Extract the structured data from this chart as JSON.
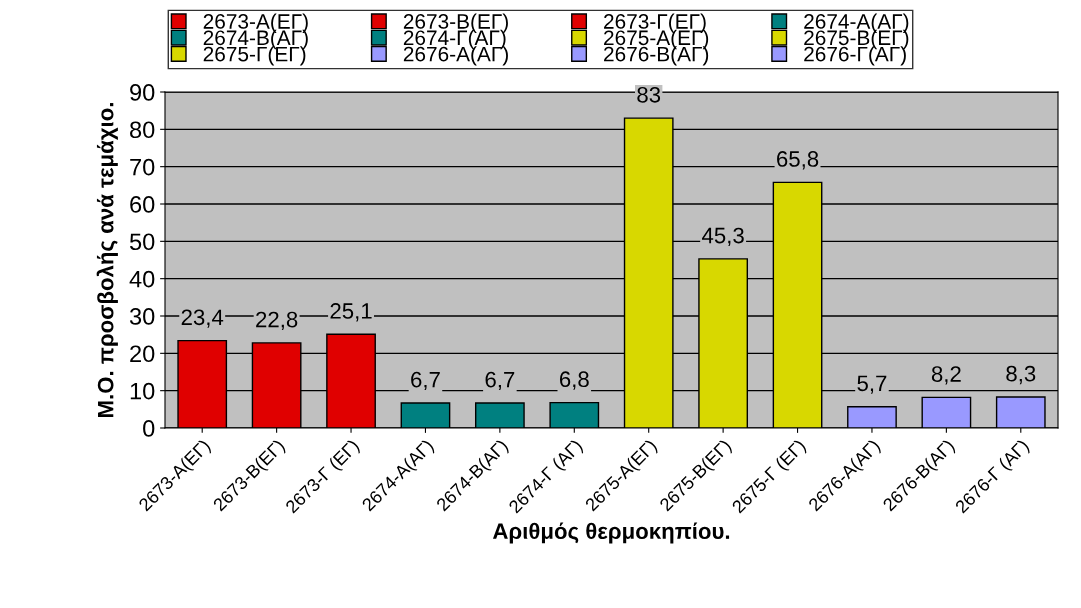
{
  "chart_data": {
    "type": "bar",
    "xlabel": "Αριθμός θερμοκηπίου.",
    "ylabel": "Μ.Ο. προσβολής ανά τεμάχιο.",
    "categories": [
      "2673-Α(ΕΓ)",
      "2673-Β(ΕΓ)",
      "2673-Γ (ΕΓ)",
      "2674-Α(ΑΓ)",
      "2674-Β(ΑΓ)",
      "2674-Γ (ΑΓ)",
      "2675-Α(ΕΓ)",
      "2675-Β(ΕΓ)",
      "2675-Γ (ΕΓ)",
      "2676-Α(ΑΓ)",
      "2676-Β(ΑΓ)",
      "2676-Γ (ΑΓ)"
    ],
    "series": [
      {
        "name": "2673-Α(ΕΓ)",
        "color": "#e00000",
        "values": [
          23.4,
          null,
          null,
          null,
          null,
          null,
          null,
          null,
          null,
          null,
          null,
          null
        ],
        "value_labels": [
          "23,4",
          null,
          null,
          null,
          null,
          null,
          null,
          null,
          null,
          null,
          null,
          null
        ]
      },
      {
        "name": "2673-Β(ΕΓ)",
        "color": "#e00000",
        "values": [
          null,
          22.8,
          null,
          null,
          null,
          null,
          null,
          null,
          null,
          null,
          null,
          null
        ],
        "value_labels": [
          null,
          "22,8",
          null,
          null,
          null,
          null,
          null,
          null,
          null,
          null,
          null,
          null
        ]
      },
      {
        "name": "2673-Γ(ΕΓ)",
        "color": "#e00000",
        "values": [
          null,
          null,
          25.1,
          null,
          null,
          null,
          null,
          null,
          null,
          null,
          null,
          null
        ],
        "value_labels": [
          null,
          null,
          "25,1",
          null,
          null,
          null,
          null,
          null,
          null,
          null,
          null,
          null
        ]
      },
      {
        "name": "2674-Α(ΑΓ)",
        "color": "#008080",
        "values": [
          null,
          null,
          null,
          6.7,
          null,
          null,
          null,
          null,
          null,
          null,
          null,
          null
        ],
        "value_labels": [
          null,
          null,
          null,
          "6,7",
          null,
          null,
          null,
          null,
          null,
          null,
          null,
          null
        ]
      },
      {
        "name": "2674-Β(ΑΓ)",
        "color": "#008080",
        "values": [
          null,
          null,
          null,
          null,
          6.7,
          null,
          null,
          null,
          null,
          null,
          null,
          null
        ],
        "value_labels": [
          null,
          null,
          null,
          null,
          "6,7",
          null,
          null,
          null,
          null,
          null,
          null,
          null
        ]
      },
      {
        "name": "2674-Γ(ΑΓ)",
        "color": "#008080",
        "values": [
          null,
          null,
          null,
          null,
          null,
          6.8,
          null,
          null,
          null,
          null,
          null,
          null
        ],
        "value_labels": [
          null,
          null,
          null,
          null,
          null,
          "6,8",
          null,
          null,
          null,
          null,
          null,
          null
        ]
      },
      {
        "name": "2675-Α(ΕΓ)",
        "color": "#d8d800",
        "values": [
          null,
          null,
          null,
          null,
          null,
          null,
          83,
          null,
          null,
          null,
          null,
          null
        ],
        "value_labels": [
          null,
          null,
          null,
          null,
          null,
          null,
          "83",
          null,
          null,
          null,
          null,
          null
        ]
      },
      {
        "name": "2675-Β(ΕΓ)",
        "color": "#d8d800",
        "values": [
          null,
          null,
          null,
          null,
          null,
          null,
          null,
          45.3,
          null,
          null,
          null,
          null
        ],
        "value_labels": [
          null,
          null,
          null,
          null,
          null,
          null,
          null,
          "45,3",
          null,
          null,
          null,
          null
        ]
      },
      {
        "name": "2675-Γ(ΕΓ)",
        "color": "#d8d800",
        "values": [
          null,
          null,
          null,
          null,
          null,
          null,
          null,
          null,
          65.8,
          null,
          null,
          null
        ],
        "value_labels": [
          null,
          null,
          null,
          null,
          null,
          null,
          null,
          null,
          "65,8",
          null,
          null,
          null
        ]
      },
      {
        "name": "2676-Α(ΑΓ)",
        "color": "#9999ff",
        "values": [
          null,
          null,
          null,
          null,
          null,
          null,
          null,
          null,
          null,
          5.7,
          null,
          null
        ],
        "value_labels": [
          null,
          null,
          null,
          null,
          null,
          null,
          null,
          null,
          null,
          "5,7",
          null,
          null
        ]
      },
      {
        "name": "2676-Β(ΑΓ)",
        "color": "#9999ff",
        "values": [
          null,
          null,
          null,
          null,
          null,
          null,
          null,
          null,
          null,
          null,
          8.2,
          null
        ],
        "value_labels": [
          null,
          null,
          null,
          null,
          null,
          null,
          null,
          null,
          null,
          null,
          "8,2",
          null
        ]
      },
      {
        "name": "2676-Γ(ΑΓ)",
        "color": "#9999ff",
        "values": [
          null,
          null,
          null,
          null,
          null,
          null,
          null,
          null,
          null,
          null,
          null,
          8.3
        ],
        "value_labels": [
          null,
          null,
          null,
          null,
          null,
          null,
          null,
          null,
          null,
          null,
          null,
          "8,3"
        ]
      }
    ],
    "ylim": [
      0,
      90
    ],
    "yticks": [
      0,
      10,
      20,
      30,
      40,
      50,
      60,
      70,
      80,
      90
    ],
    "grid": "y",
    "legend": "top"
  }
}
